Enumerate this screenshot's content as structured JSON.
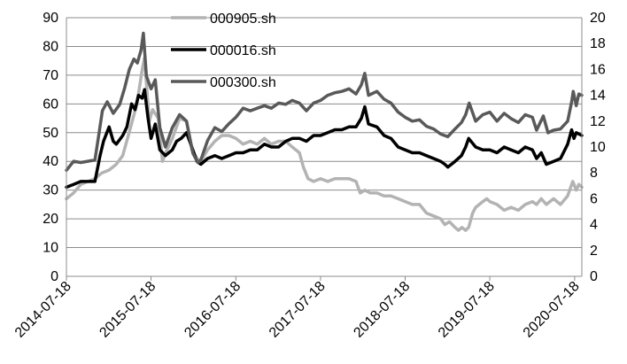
{
  "chart_data": {
    "type": "line",
    "title": "",
    "xlabel": "",
    "ylabel": "",
    "y_left_range": [
      0,
      90
    ],
    "y_left_ticks": [
      "0",
      "10",
      "20",
      "30",
      "40",
      "50",
      "60",
      "70",
      "80",
      "90"
    ],
    "y_right_range": [
      0,
      20
    ],
    "y_right_ticks": [
      "0",
      "2",
      "4",
      "6",
      "8",
      "10",
      "12",
      "14",
      "16",
      "18",
      "20"
    ],
    "x_range": [
      "2014-07-18",
      "2020-08-18"
    ],
    "x_ticks": [
      "2014-07-18",
      "2015-07-18",
      "2016-07-18",
      "2017-07-18",
      "2018-07-18",
      "2019-07-18",
      "2020-07-18"
    ],
    "grid": "horizontal",
    "legend_position": "top-center",
    "series": [
      {
        "name": "000905.sh",
        "axis": "left",
        "color": "#b3b3b3",
        "points": [
          [
            "2014-07-18",
            27
          ],
          [
            "2014-08-18",
            29
          ],
          [
            "2014-09-18",
            32
          ],
          [
            "2014-10-18",
            33
          ],
          [
            "2014-11-18",
            34
          ],
          [
            "2014-12-18",
            36
          ],
          [
            "2015-01-18",
            37
          ],
          [
            "2015-02-18",
            39
          ],
          [
            "2015-03-18",
            42
          ],
          [
            "2015-04-18",
            51
          ],
          [
            "2015-05-18",
            60
          ],
          [
            "2015-06-10",
            72
          ],
          [
            "2015-06-20",
            76
          ],
          [
            "2015-07-10",
            54
          ],
          [
            "2015-07-25",
            58
          ],
          [
            "2015-08-18",
            55
          ],
          [
            "2015-09-05",
            40
          ],
          [
            "2015-09-25",
            44
          ],
          [
            "2015-10-18",
            48
          ],
          [
            "2015-11-18",
            55
          ],
          [
            "2015-12-18",
            54
          ],
          [
            "2016-01-10",
            44
          ],
          [
            "2016-02-01",
            41
          ],
          [
            "2016-02-18",
            40
          ],
          [
            "2016-03-18",
            44
          ],
          [
            "2016-04-18",
            47
          ],
          [
            "2016-05-18",
            49
          ],
          [
            "2016-06-18",
            49
          ],
          [
            "2016-07-18",
            48
          ],
          [
            "2016-08-18",
            46
          ],
          [
            "2016-09-18",
            47
          ],
          [
            "2016-10-18",
            46
          ],
          [
            "2016-11-18",
            48
          ],
          [
            "2016-12-18",
            46
          ],
          [
            "2017-01-18",
            47
          ],
          [
            "2017-02-18",
            47
          ],
          [
            "2017-03-18",
            45
          ],
          [
            "2017-04-18",
            43
          ],
          [
            "2017-05-05",
            38
          ],
          [
            "2017-05-25",
            34
          ],
          [
            "2017-06-18",
            33
          ],
          [
            "2017-07-18",
            34
          ],
          [
            "2017-08-18",
            33
          ],
          [
            "2017-09-18",
            34
          ],
          [
            "2017-10-18",
            34
          ],
          [
            "2017-11-18",
            34
          ],
          [
            "2017-12-18",
            33
          ],
          [
            "2018-01-05",
            29
          ],
          [
            "2018-01-25",
            30
          ],
          [
            "2018-02-18",
            29
          ],
          [
            "2018-03-18",
            29
          ],
          [
            "2018-04-18",
            28
          ],
          [
            "2018-05-18",
            28
          ],
          [
            "2018-06-18",
            27
          ],
          [
            "2018-07-18",
            26
          ],
          [
            "2018-08-18",
            25
          ],
          [
            "2018-09-18",
            25
          ],
          [
            "2018-10-18",
            22
          ],
          [
            "2018-11-18",
            21
          ],
          [
            "2018-12-18",
            20
          ],
          [
            "2019-01-05",
            18
          ],
          [
            "2019-01-25",
            19
          ],
          [
            "2019-02-18",
            17
          ],
          [
            "2019-03-05",
            16
          ],
          [
            "2019-03-20",
            17
          ],
          [
            "2019-04-05",
            16
          ],
          [
            "2019-04-18",
            17
          ],
          [
            "2019-05-05",
            22
          ],
          [
            "2019-05-18",
            24
          ],
          [
            "2019-06-18",
            26
          ],
          [
            "2019-07-05",
            27
          ],
          [
            "2019-07-18",
            26
          ],
          [
            "2019-08-18",
            25
          ],
          [
            "2019-09-18",
            23
          ],
          [
            "2019-10-18",
            24
          ],
          [
            "2019-11-18",
            23
          ],
          [
            "2019-12-18",
            25
          ],
          [
            "2020-01-18",
            26
          ],
          [
            "2020-02-05",
            25
          ],
          [
            "2020-02-25",
            27
          ],
          [
            "2020-03-18",
            25
          ],
          [
            "2020-04-18",
            27
          ],
          [
            "2020-05-18",
            25
          ],
          [
            "2020-06-18",
            28
          ],
          [
            "2020-07-01",
            31
          ],
          [
            "2020-07-10",
            33
          ],
          [
            "2020-07-25",
            30
          ],
          [
            "2020-08-05",
            32
          ],
          [
            "2020-08-18",
            31
          ]
        ]
      },
      {
        "name": "000016.sh",
        "axis": "left",
        "color": "#000000",
        "points": [
          [
            "2014-07-18",
            31
          ],
          [
            "2014-08-18",
            32
          ],
          [
            "2014-09-18",
            33
          ],
          [
            "2014-10-18",
            33
          ],
          [
            "2014-11-18",
            33
          ],
          [
            "2014-12-10",
            42
          ],
          [
            "2014-12-25",
            47
          ],
          [
            "2015-01-18",
            52
          ],
          [
            "2015-02-05",
            47
          ],
          [
            "2015-02-18",
            46
          ],
          [
            "2015-03-18",
            49
          ],
          [
            "2015-04-05",
            52
          ],
          [
            "2015-04-25",
            60
          ],
          [
            "2015-05-10",
            58
          ],
          [
            "2015-05-25",
            63
          ],
          [
            "2015-06-10",
            62
          ],
          [
            "2015-06-20",
            65
          ],
          [
            "2015-07-05",
            55
          ],
          [
            "2015-07-18",
            48
          ],
          [
            "2015-08-05",
            53
          ],
          [
            "2015-08-25",
            44
          ],
          [
            "2015-09-18",
            42
          ],
          [
            "2015-10-18",
            44
          ],
          [
            "2015-11-05",
            47
          ],
          [
            "2015-11-25",
            48
          ],
          [
            "2015-12-18",
            50
          ],
          [
            "2016-01-10",
            45
          ],
          [
            "2016-02-01",
            40
          ],
          [
            "2016-02-18",
            39
          ],
          [
            "2016-03-18",
            41
          ],
          [
            "2016-04-18",
            42
          ],
          [
            "2016-05-18",
            41
          ],
          [
            "2016-06-18",
            42
          ],
          [
            "2016-07-18",
            43
          ],
          [
            "2016-08-18",
            43
          ],
          [
            "2016-09-18",
            44
          ],
          [
            "2016-10-18",
            44
          ],
          [
            "2016-11-18",
            46
          ],
          [
            "2016-12-18",
            45
          ],
          [
            "2017-01-18",
            45
          ],
          [
            "2017-02-18",
            47
          ],
          [
            "2017-03-18",
            48
          ],
          [
            "2017-04-18",
            48
          ],
          [
            "2017-05-18",
            47
          ],
          [
            "2017-06-18",
            49
          ],
          [
            "2017-07-18",
            49
          ],
          [
            "2017-08-18",
            50
          ],
          [
            "2017-09-18",
            51
          ],
          [
            "2017-10-18",
            51
          ],
          [
            "2017-11-18",
            52
          ],
          [
            "2017-12-18",
            52
          ],
          [
            "2018-01-10",
            55
          ],
          [
            "2018-01-25",
            59
          ],
          [
            "2018-02-10",
            53
          ],
          [
            "2018-03-18",
            52
          ],
          [
            "2018-04-18",
            49
          ],
          [
            "2018-05-18",
            48
          ],
          [
            "2018-06-18",
            45
          ],
          [
            "2018-07-18",
            44
          ],
          [
            "2018-08-18",
            43
          ],
          [
            "2018-09-18",
            43
          ],
          [
            "2018-10-18",
            42
          ],
          [
            "2018-11-18",
            41
          ],
          [
            "2018-12-18",
            40
          ],
          [
            "2019-01-05",
            39
          ],
          [
            "2019-01-18",
            38
          ],
          [
            "2019-02-18",
            40
          ],
          [
            "2019-03-18",
            42
          ],
          [
            "2019-04-05",
            45
          ],
          [
            "2019-04-18",
            48
          ],
          [
            "2019-05-18",
            45
          ],
          [
            "2019-06-18",
            44
          ],
          [
            "2019-07-18",
            44
          ],
          [
            "2019-08-18",
            43
          ],
          [
            "2019-09-18",
            45
          ],
          [
            "2019-10-18",
            44
          ],
          [
            "2019-11-18",
            43
          ],
          [
            "2019-12-18",
            45
          ],
          [
            "2020-01-18",
            44
          ],
          [
            "2020-02-05",
            41
          ],
          [
            "2020-02-25",
            43
          ],
          [
            "2020-03-18",
            39
          ],
          [
            "2020-04-18",
            40
          ],
          [
            "2020-05-18",
            41
          ],
          [
            "2020-06-18",
            46
          ],
          [
            "2020-07-05",
            51
          ],
          [
            "2020-07-15",
            48
          ],
          [
            "2020-07-25",
            50
          ],
          [
            "2020-08-18",
            49
          ]
        ]
      },
      {
        "name": "000300.sh",
        "axis": "right",
        "color": "#595959",
        "points": [
          [
            "2014-07-18",
            8.2
          ],
          [
            "2014-08-18",
            8.9
          ],
          [
            "2014-09-18",
            8.8
          ],
          [
            "2014-10-18",
            8.9
          ],
          [
            "2014-11-18",
            9.0
          ],
          [
            "2014-12-05",
            11.0
          ],
          [
            "2014-12-20",
            12.8
          ],
          [
            "2015-01-10",
            13.5
          ],
          [
            "2015-02-05",
            12.6
          ],
          [
            "2015-03-05",
            13.3
          ],
          [
            "2015-03-25",
            14.5
          ],
          [
            "2015-04-15",
            16.0
          ],
          [
            "2015-05-05",
            16.8
          ],
          [
            "2015-05-20",
            16.5
          ],
          [
            "2015-06-05",
            17.5
          ],
          [
            "2015-06-15",
            18.8
          ],
          [
            "2015-06-28",
            15.5
          ],
          [
            "2015-07-18",
            14.5
          ],
          [
            "2015-08-05",
            15.2
          ],
          [
            "2015-08-25",
            11.5
          ],
          [
            "2015-09-18",
            10.0
          ],
          [
            "2015-10-18",
            11.5
          ],
          [
            "2015-11-18",
            12.5
          ],
          [
            "2015-12-18",
            12.0
          ],
          [
            "2016-01-15",
            9.5
          ],
          [
            "2016-02-05",
            8.8
          ],
          [
            "2016-02-18",
            9.0
          ],
          [
            "2016-03-18",
            10.5
          ],
          [
            "2016-04-18",
            11.5
          ],
          [
            "2016-05-18",
            11.2
          ],
          [
            "2016-06-18",
            11.8
          ],
          [
            "2016-07-18",
            12.3
          ],
          [
            "2016-08-18",
            13.0
          ],
          [
            "2016-09-18",
            12.8
          ],
          [
            "2016-10-18",
            13.0
          ],
          [
            "2016-11-18",
            13.2
          ],
          [
            "2016-12-18",
            13.0
          ],
          [
            "2017-01-18",
            13.4
          ],
          [
            "2017-02-18",
            13.3
          ],
          [
            "2017-03-18",
            13.6
          ],
          [
            "2017-04-18",
            13.4
          ],
          [
            "2017-05-18",
            12.8
          ],
          [
            "2017-06-18",
            13.4
          ],
          [
            "2017-07-18",
            13.6
          ],
          [
            "2017-08-18",
            14.0
          ],
          [
            "2017-09-18",
            14.2
          ],
          [
            "2017-10-18",
            14.3
          ],
          [
            "2017-11-18",
            14.5
          ],
          [
            "2017-12-18",
            14.1
          ],
          [
            "2018-01-10",
            14.8
          ],
          [
            "2018-01-25",
            15.7
          ],
          [
            "2018-02-10",
            14.0
          ],
          [
            "2018-03-18",
            14.3
          ],
          [
            "2018-04-18",
            13.7
          ],
          [
            "2018-05-18",
            13.4
          ],
          [
            "2018-06-18",
            12.7
          ],
          [
            "2018-07-18",
            12.3
          ],
          [
            "2018-08-18",
            12.0
          ],
          [
            "2018-09-18",
            12.1
          ],
          [
            "2018-10-18",
            11.6
          ],
          [
            "2018-11-18",
            11.4
          ],
          [
            "2018-12-18",
            11.0
          ],
          [
            "2019-01-18",
            10.8
          ],
          [
            "2019-02-18",
            11.4
          ],
          [
            "2019-03-18",
            11.9
          ],
          [
            "2019-04-05",
            12.5
          ],
          [
            "2019-04-20",
            13.4
          ],
          [
            "2019-05-18",
            12.0
          ],
          [
            "2019-06-18",
            12.5
          ],
          [
            "2019-07-18",
            12.7
          ],
          [
            "2019-08-18",
            12.0
          ],
          [
            "2019-09-18",
            12.6
          ],
          [
            "2019-10-18",
            12.2
          ],
          [
            "2019-11-18",
            11.9
          ],
          [
            "2019-12-18",
            12.5
          ],
          [
            "2020-01-18",
            12.3
          ],
          [
            "2020-02-05",
            11.3
          ],
          [
            "2020-03-05",
            12.4
          ],
          [
            "2020-03-25",
            11.1
          ],
          [
            "2020-04-18",
            11.3
          ],
          [
            "2020-05-18",
            11.4
          ],
          [
            "2020-06-18",
            12.0
          ],
          [
            "2020-07-05",
            13.5
          ],
          [
            "2020-07-12",
            14.3
          ],
          [
            "2020-07-25",
            13.2
          ],
          [
            "2020-08-05",
            14.1
          ],
          [
            "2020-08-18",
            14.0
          ]
        ]
      }
    ]
  }
}
